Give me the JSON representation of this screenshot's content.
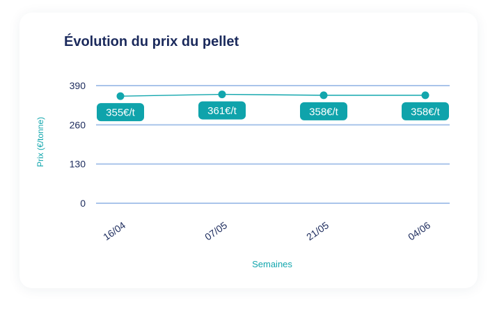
{
  "chart_data": {
    "type": "line",
    "title": "Évolution du prix du pellet",
    "xlabel": "Semaines",
    "ylabel": "Prix (€/tonne)",
    "categories": [
      "16/04",
      "07/05",
      "21/05",
      "04/06"
    ],
    "series": [
      {
        "values": [
          355,
          361,
          358,
          358
        ],
        "labels": [
          "355€/t",
          "361€/t",
          "358€/t",
          "358€/t"
        ]
      }
    ],
    "yticks": [
      "0",
      "130",
      "260",
      "390"
    ],
    "ylim": [
      0,
      390
    ],
    "grid": true,
    "legend": "none",
    "colors": {
      "line": "#12a6ad",
      "label_bg": "#0fa3ab",
      "gridline": "#a9c4ea",
      "title": "#1b2a5c",
      "tick_text": "#1b2a5c",
      "axis_title": "#12a6ad"
    }
  }
}
